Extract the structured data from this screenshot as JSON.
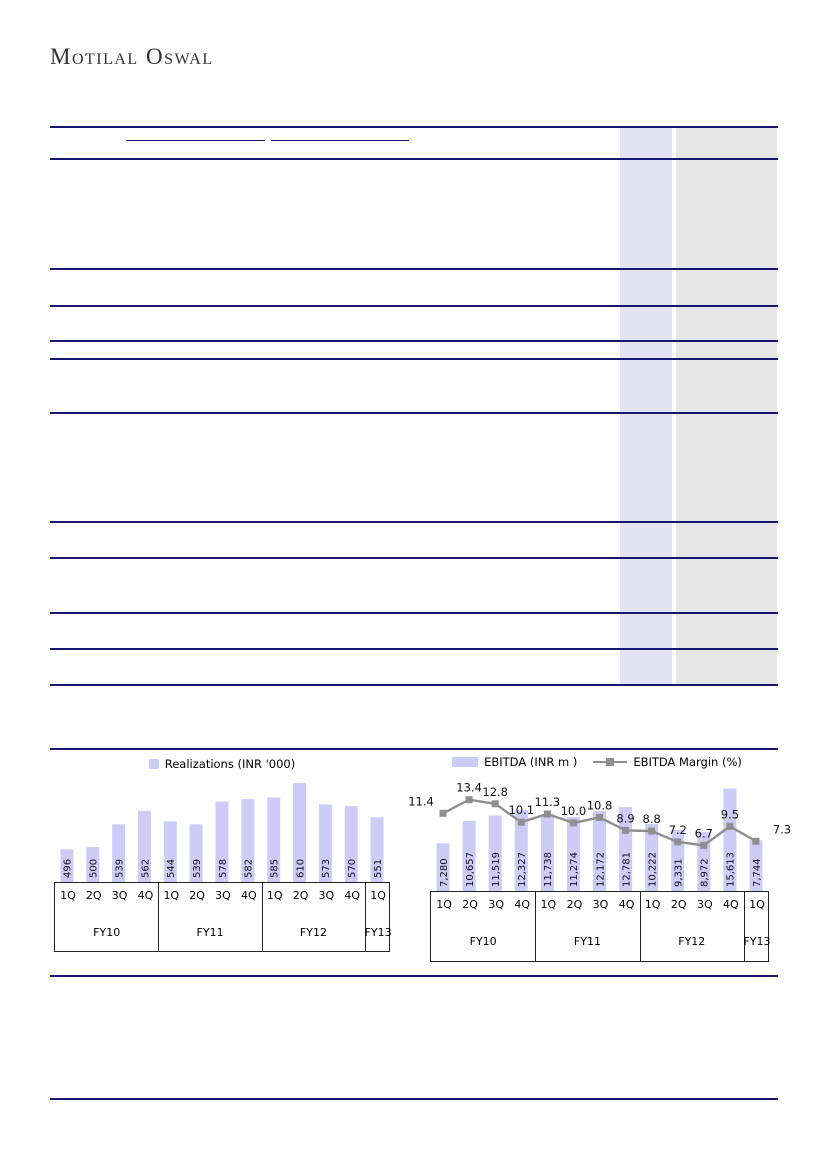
{
  "brand": {
    "logo_text": "Motilal Oswal"
  },
  "colors": {
    "navy": "#1a156e",
    "bar-fill": "#ccccf7",
    "line-gray": "#8f8f8f",
    "band-lavender": "#e4e3f4",
    "band-gray": "#e7e6e7",
    "axis-border": "#222222"
  },
  "chart_data": [
    {
      "type": "bar",
      "title": "Realizations quarterly trend",
      "legend": [
        {
          "label": "Realizations (INR '000)",
          "swatch": "square"
        }
      ],
      "categories": [
        "1Q",
        "2Q",
        "3Q",
        "4Q",
        "1Q",
        "2Q",
        "3Q",
        "4Q",
        "1Q",
        "2Q",
        "3Q",
        "4Q",
        "1Q"
      ],
      "group_labels": [
        "FY10",
        "FY11",
        "FY12",
        "FY13"
      ],
      "group_sizes": [
        4,
        4,
        4,
        1
      ],
      "values": [
        496,
        500,
        539,
        562,
        544,
        539,
        578,
        582,
        585,
        610,
        573,
        570,
        551
      ],
      "value_labels": [
        "496",
        "500",
        "539",
        "562",
        "544",
        "539",
        "578",
        "582",
        "585",
        "610",
        "573",
        "570",
        "551"
      ],
      "ylim": [
        440,
        620
      ],
      "grid": false,
      "legend_position": "top"
    },
    {
      "type": "bar+line",
      "title": "EBITDA and EBITDA margin quarterly trend",
      "legend": [
        {
          "label": "EBITDA (INR m )",
          "swatch": "bar"
        },
        {
          "label": "EBITDA Margin (%)",
          "swatch": "line"
        }
      ],
      "categories": [
        "1Q",
        "2Q",
        "3Q",
        "4Q",
        "1Q",
        "2Q",
        "3Q",
        "4Q",
        "1Q",
        "2Q",
        "3Q",
        "4Q",
        "1Q"
      ],
      "group_labels": [
        "FY10",
        "FY11",
        "FY12",
        "FY13"
      ],
      "group_sizes": [
        4,
        4,
        4,
        1
      ],
      "series": [
        {
          "name": "EBITDA (INR m )",
          "type": "bar",
          "values": [
            7280,
            10657,
            11519,
            12327,
            11738,
            11274,
            12172,
            12781,
            10222,
            9331,
            8972,
            15613,
            7744
          ],
          "value_labels": [
            "7,280",
            "10,657",
            "11,519",
            "12,327",
            "11,738",
            "11,274",
            "12,172",
            "12,781",
            "10,222",
            "9,331",
            "8,972",
            "15,613",
            "7,744"
          ],
          "ylim": [
            0,
            16000
          ]
        },
        {
          "name": "EBITDA Margin (%)",
          "type": "line",
          "values": [
            11.4,
            13.4,
            12.8,
            10.1,
            11.3,
            10.0,
            10.8,
            8.9,
            8.8,
            7.2,
            6.7,
            9.5,
            7.3
          ],
          "value_labels": [
            "11.4",
            "13.4",
            "12.8",
            "10.1",
            "11.3",
            "10.0",
            "10.8",
            "8.9",
            "8.8",
            "7.2",
            "6.7",
            "9.5",
            "7.3"
          ],
          "ylim": [
            0,
            16
          ]
        }
      ],
      "grid": false,
      "legend_position": "top"
    }
  ]
}
